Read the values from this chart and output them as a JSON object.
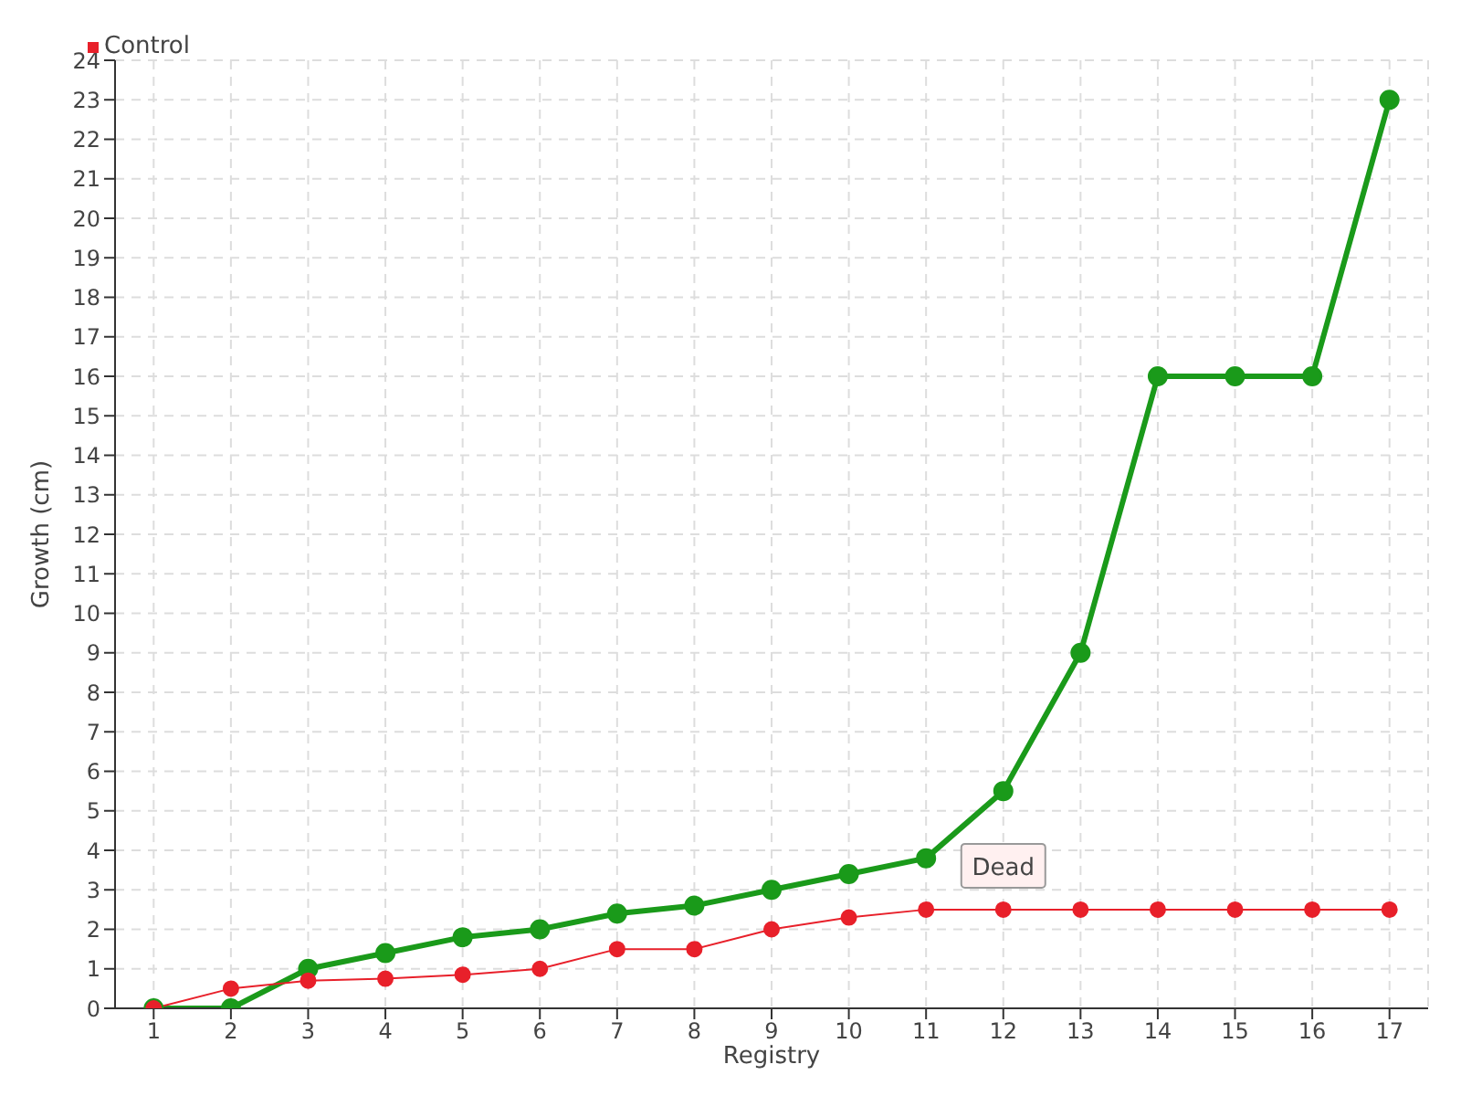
{
  "chart_data": {
    "type": "line",
    "xlabel": "Registry",
    "ylabel": "Growth (cm)",
    "x": [
      1,
      2,
      3,
      4,
      5,
      6,
      7,
      8,
      9,
      10,
      11,
      12,
      13,
      14,
      15,
      16,
      17
    ],
    "series": [
      {
        "color": "#1a9a1a",
        "values": [
          0,
          0,
          1,
          1.4,
          1.8,
          2,
          2.4,
          2.6,
          3,
          3.4,
          3.8,
          5.5,
          9,
          16,
          16,
          16,
          23
        ]
      },
      {
        "name": "Control",
        "color": "#e8202a",
        "values": [
          0,
          0.5,
          0.7,
          0.75,
          0.85,
          1,
          1.5,
          1.5,
          2,
          2.3,
          2.5,
          2.5,
          2.5,
          2.5,
          2.5,
          2.5,
          2.5
        ]
      }
    ],
    "xlim": [
      0.5,
      17.5
    ],
    "xticks": [
      1,
      2,
      3,
      4,
      5,
      6,
      7,
      8,
      9,
      10,
      11,
      12,
      13,
      14,
      15,
      16,
      17
    ],
    "ylim": [
      0,
      24
    ],
    "yticks": [
      0,
      1,
      2,
      3,
      4,
      5,
      6,
      7,
      8,
      9,
      10,
      11,
      12,
      13,
      14,
      15,
      16,
      17,
      18,
      19,
      20,
      21,
      22,
      23,
      24
    ],
    "annotations": [
      {
        "text": "Dead",
        "x": 12,
        "y": 2.5
      }
    ],
    "grid": true,
    "legend": "top left",
    "marker": "circle",
    "line_style": "solid"
  }
}
